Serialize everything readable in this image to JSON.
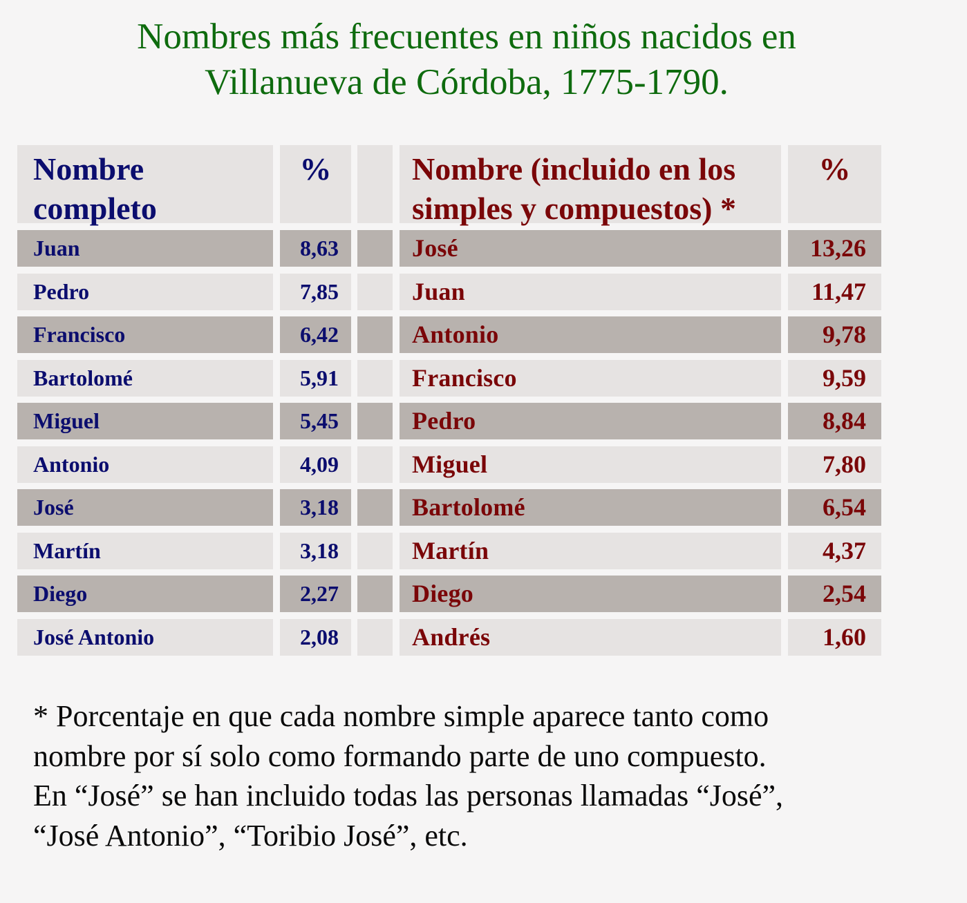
{
  "title": {
    "line1": "Nombres más frecuentes en niños nacidos en",
    "line2": "Villanueva de Córdoba, 1775-1790."
  },
  "colors": {
    "title": "#0e6b0e",
    "left_text": "#0b0d6e",
    "right_text": "#7a0608",
    "row_light": "#e6e3e2",
    "row_dark": "#b8b2ae",
    "background": "#f6f5f5"
  },
  "left_table": {
    "header": {
      "name_line1": "Nombre",
      "name_line2": "completo",
      "pct": "%"
    },
    "rows": [
      {
        "name": "Juan",
        "pct": "8,63"
      },
      {
        "name": "Pedro",
        "pct": "7,85"
      },
      {
        "name": "Francisco",
        "pct": "6,42"
      },
      {
        "name": "Bartolomé",
        "pct": "5,91"
      },
      {
        "name": "Miguel",
        "pct": "5,45"
      },
      {
        "name": "Antonio",
        "pct": "4,09"
      },
      {
        "name": "José",
        "pct": "3,18"
      },
      {
        "name": "Martín",
        "pct": "3,18"
      },
      {
        "name": "Diego",
        "pct": "2,27"
      },
      {
        "name": "José Antonio",
        "pct": "2,08"
      }
    ]
  },
  "right_table": {
    "header": {
      "name_line1": "Nombre (incluido en los",
      "name_line2": "simples y compuestos) *",
      "pct": "%"
    },
    "rows": [
      {
        "name": "José",
        "pct": "13,26"
      },
      {
        "name": "Juan",
        "pct": "11,47"
      },
      {
        "name": "Antonio",
        "pct": "9,78"
      },
      {
        "name": "Francisco",
        "pct": "9,59"
      },
      {
        "name": "Pedro",
        "pct": "8,84"
      },
      {
        "name": "Miguel",
        "pct": "7,80"
      },
      {
        "name": "Bartolomé",
        "pct": "6,54"
      },
      {
        "name": "Martín",
        "pct": "4,37"
      },
      {
        "name": "Diego",
        "pct": "2,54"
      },
      {
        "name": "Andrés",
        "pct": "1,60"
      }
    ]
  },
  "footnote": {
    "line1": "* Porcentaje en que cada nombre simple aparece tanto como",
    "line2": "nombre por sí solo como formando parte de uno compuesto.",
    "line3": "En “José” se han incluido todas las personas llamadas “José”,",
    "line4": "“José Antonio”, “Toribio José”, etc."
  }
}
